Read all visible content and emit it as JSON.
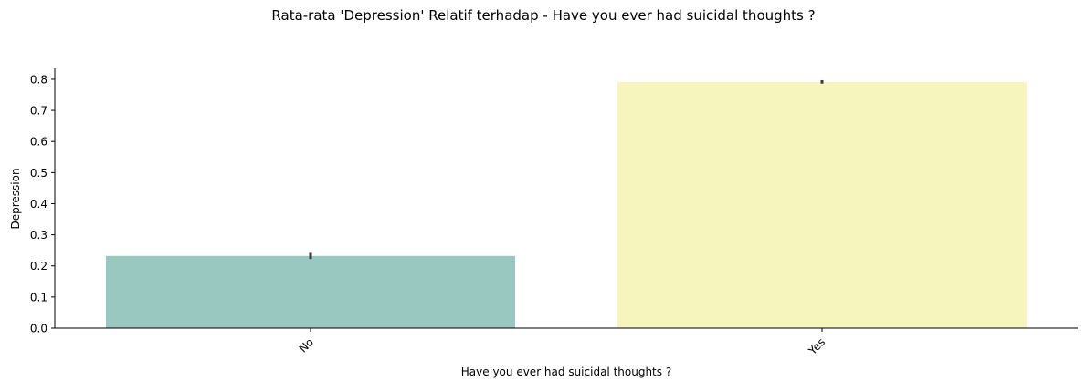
{
  "chart_data": {
    "type": "bar",
    "title": "Rata-rata 'Depression' Relatif terhadap - Have you ever had suicidal thoughts ?",
    "xlabel": "Have you ever had suicidal thoughts ?",
    "ylabel": "Depression",
    "categories": [
      "No",
      "Yes"
    ],
    "values": [
      0.232,
      0.791
    ],
    "error_bars": [
      {
        "low": 0.222,
        "high": 0.242
      },
      {
        "low": 0.786,
        "high": 0.797
      }
    ],
    "colors": [
      "#99c8c1",
      "#f6f5bd"
    ],
    "error_bar_color": "#3b3b3b",
    "ylim": [
      0,
      0.835
    ],
    "yticks": [
      "0.0",
      "0.1",
      "0.2",
      "0.3",
      "0.4",
      "0.5",
      "0.6",
      "0.7",
      "0.8"
    ],
    "grid": false,
    "legend": "none"
  }
}
